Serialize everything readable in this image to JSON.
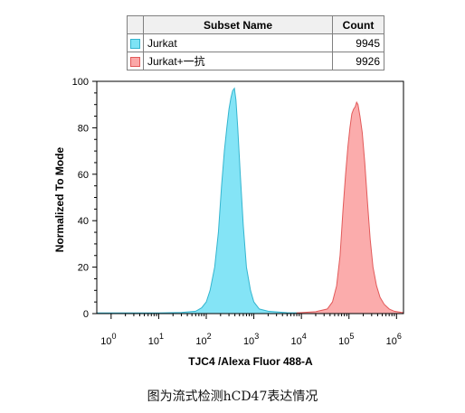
{
  "legend": {
    "headers": {
      "subset": "Subset Name",
      "count": "Count"
    },
    "rows": [
      {
        "name": "Jurkat",
        "count": "9945",
        "fill": "#7de3f5",
        "stroke": "#34b5cf"
      },
      {
        "name": "Jurkat+一抗",
        "count": "9926",
        "fill": "#fba8a8",
        "stroke": "#e25a5a"
      }
    ]
  },
  "caption": "图为流式检测hCD47表达情况",
  "chart_data": {
    "type": "area",
    "title": "",
    "xlabel": "TJC4 /Alexa Fluor 488-A",
    "ylabel": "Normalized To Mode",
    "x_scale": "log",
    "xlim": [
      0.5,
      1400000
    ],
    "ylim": [
      0,
      100
    ],
    "x_ticks": [
      {
        "value": 1,
        "base": "10",
        "exp": "0"
      },
      {
        "value": 10,
        "base": "10",
        "exp": "1"
      },
      {
        "value": 100,
        "base": "10",
        "exp": "2"
      },
      {
        "value": 1000,
        "base": "10",
        "exp": "3"
      },
      {
        "value": 10000,
        "base": "10",
        "exp": "4"
      },
      {
        "value": 100000,
        "base": "10",
        "exp": "5"
      },
      {
        "value": 1000000,
        "base": "10",
        "exp": "6"
      }
    ],
    "y_ticks": [
      "0",
      "20",
      "40",
      "60",
      "80",
      "100"
    ],
    "series": [
      {
        "name": "Jurkat",
        "fill": "#7de3f5",
        "stroke": "#34b5cf",
        "points": [
          [
            0.5,
            0.3
          ],
          [
            10,
            0.3
          ],
          [
            30,
            0.5
          ],
          [
            60,
            1.0
          ],
          [
            80,
            2.5
          ],
          [
            100,
            5
          ],
          [
            120,
            10
          ],
          [
            150,
            20
          ],
          [
            180,
            35
          ],
          [
            210,
            55
          ],
          [
            240,
            70
          ],
          [
            270,
            80
          ],
          [
            300,
            88
          ],
          [
            330,
            93
          ],
          [
            360,
            96
          ],
          [
            390,
            97
          ],
          [
            420,
            92
          ],
          [
            460,
            80
          ],
          [
            520,
            60
          ],
          [
            600,
            38
          ],
          [
            700,
            20
          ],
          [
            850,
            10
          ],
          [
            1000,
            5
          ],
          [
            1300,
            2
          ],
          [
            2000,
            1
          ],
          [
            5000,
            0.4
          ],
          [
            20000,
            0.3
          ],
          [
            1400000,
            0.3
          ]
        ]
      },
      {
        "name": "Jurkat+一抗",
        "fill": "#fba8a8",
        "stroke": "#e25a5a",
        "points": [
          [
            8000,
            0.3
          ],
          [
            20000,
            0.8
          ],
          [
            35000,
            2
          ],
          [
            45000,
            5
          ],
          [
            55000,
            12
          ],
          [
            65000,
            25
          ],
          [
            75000,
            45
          ],
          [
            85000,
            60
          ],
          [
            95000,
            72
          ],
          [
            105000,
            80
          ],
          [
            115000,
            86
          ],
          [
            125000,
            88
          ],
          [
            135000,
            89
          ],
          [
            145000,
            91
          ],
          [
            155000,
            90
          ],
          [
            170000,
            85
          ],
          [
            190000,
            78
          ],
          [
            215000,
            65
          ],
          [
            245000,
            48
          ],
          [
            280000,
            32
          ],
          [
            320000,
            20
          ],
          [
            380000,
            12
          ],
          [
            450000,
            7
          ],
          [
            550000,
            4
          ],
          [
            700000,
            2
          ],
          [
            900000,
            1
          ],
          [
            1400000,
            0.4
          ]
        ]
      }
    ]
  }
}
